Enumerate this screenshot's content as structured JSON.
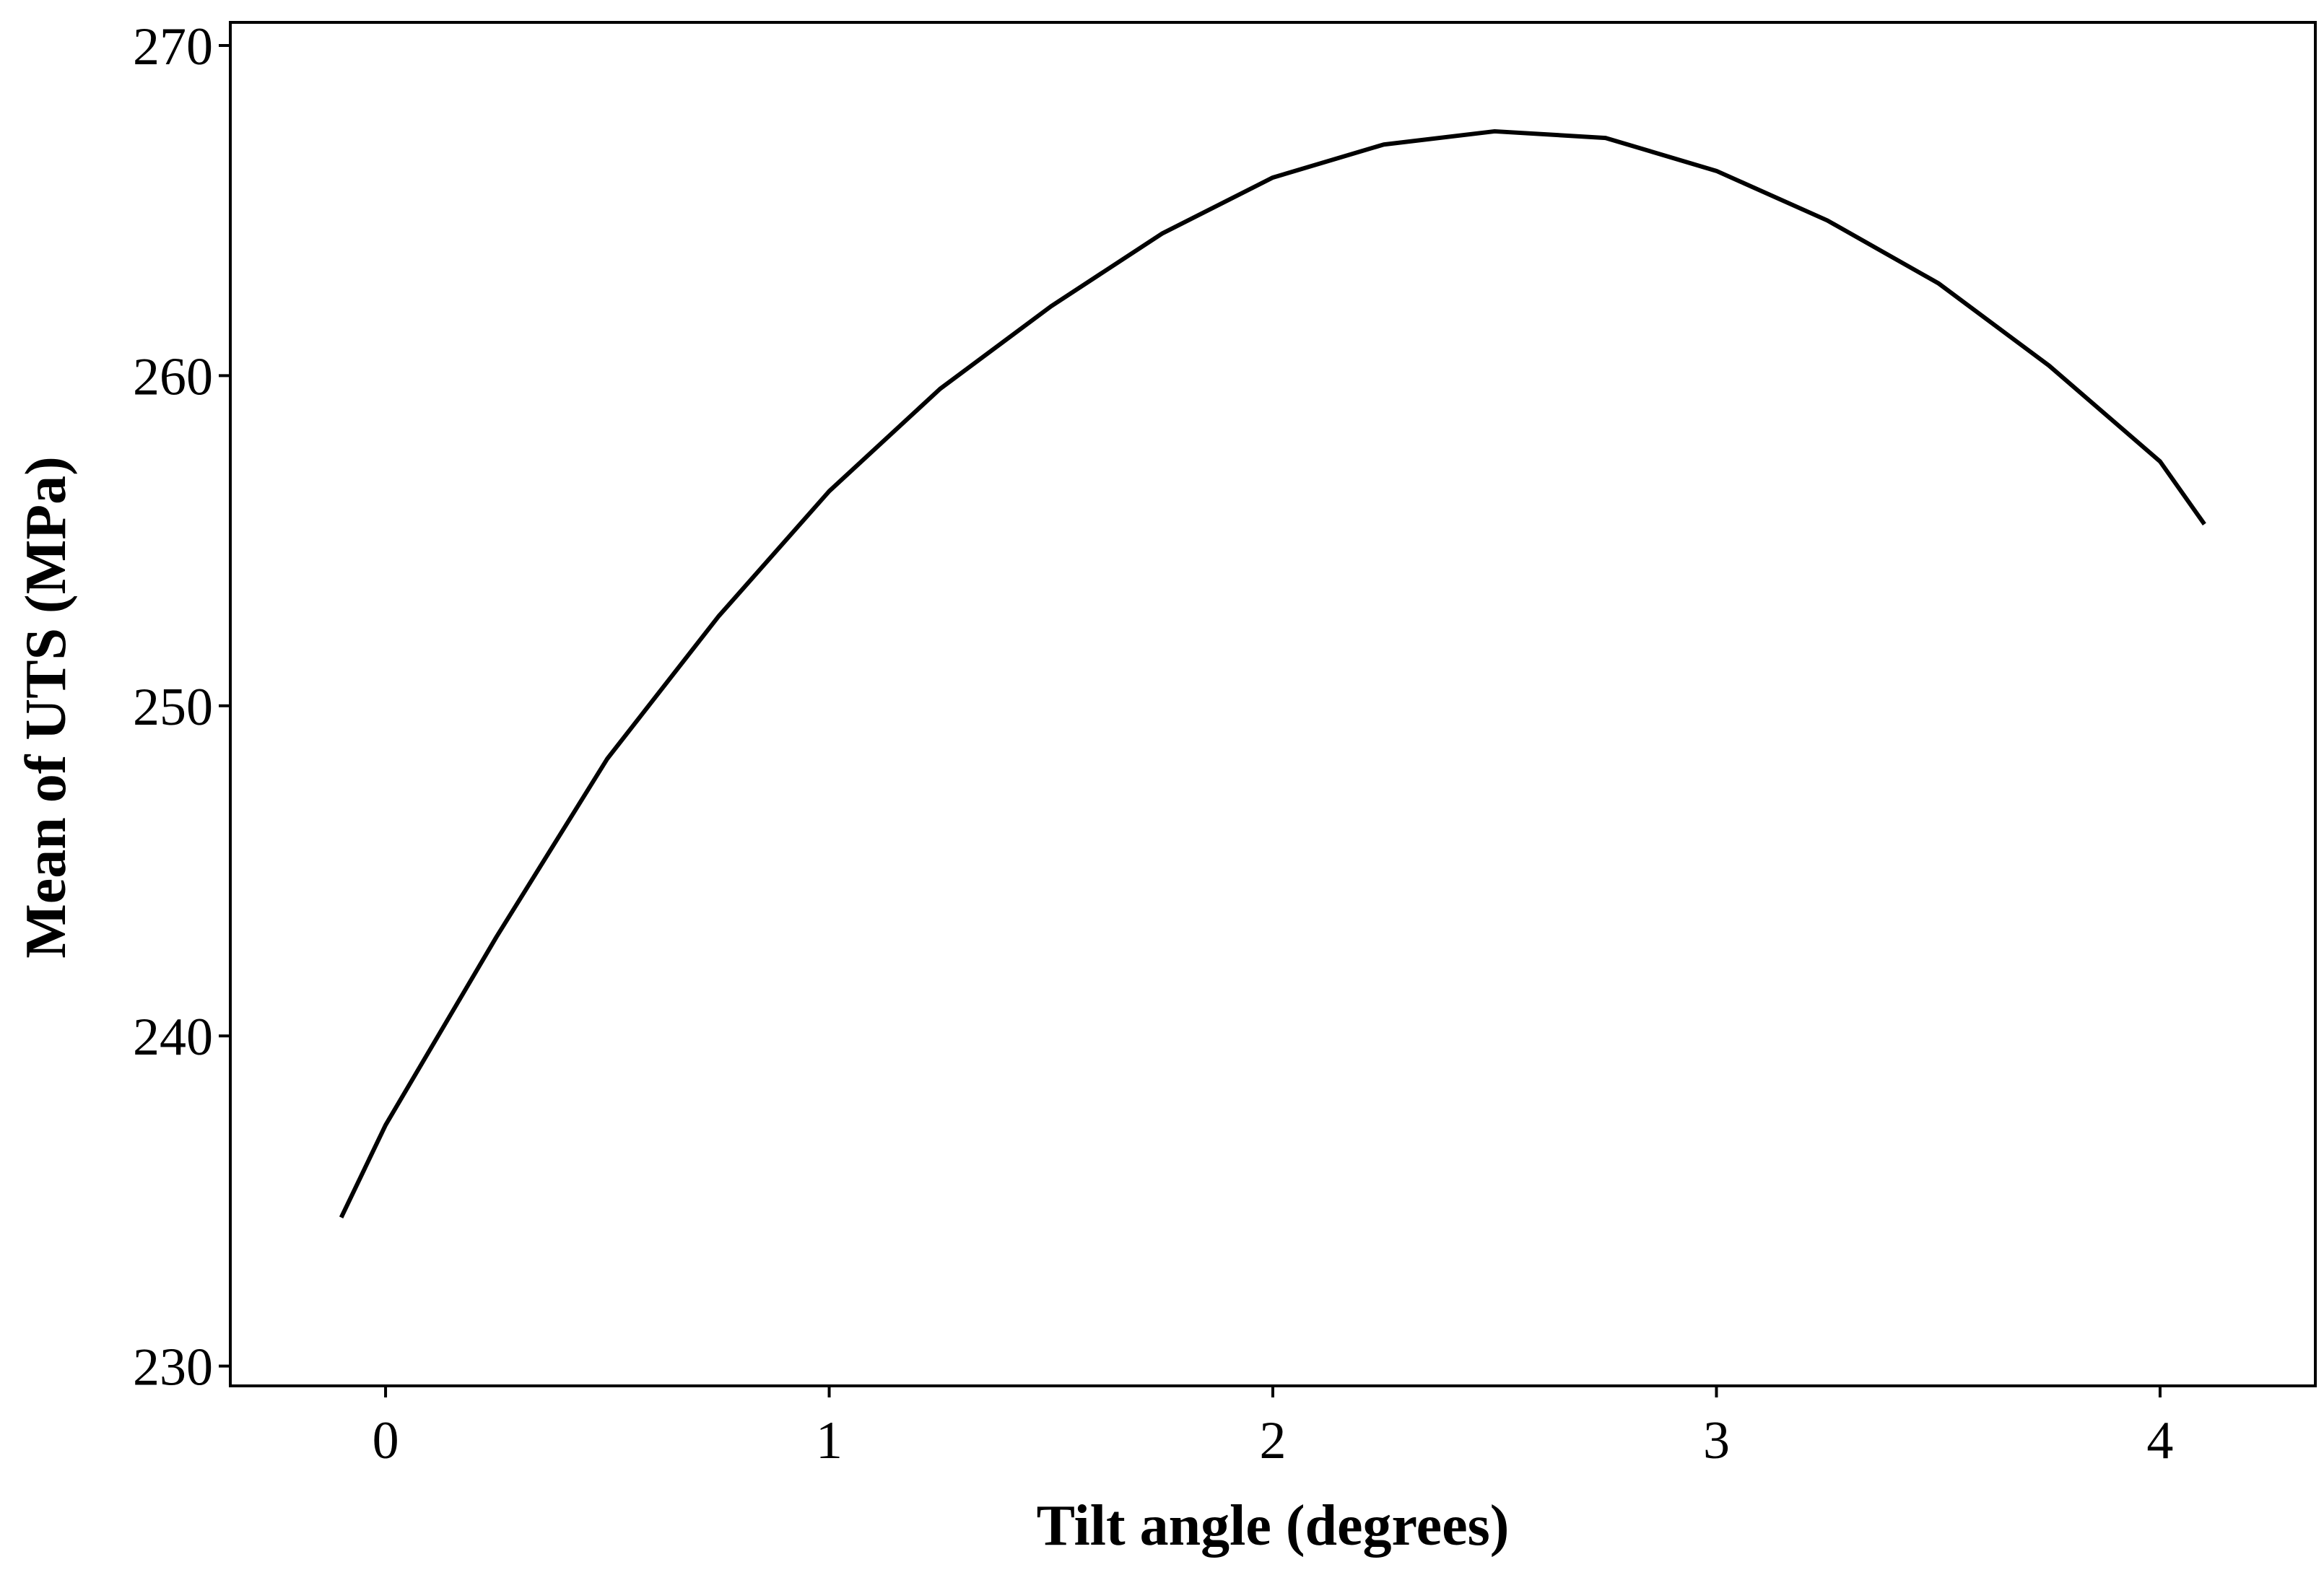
{
  "chart_data": {
    "type": "line",
    "xlabel": "Tilt angle (degrees)",
    "ylabel": "Mean of UTS (MPa)",
    "x": [
      -0.1,
      0,
      0.25,
      0.5,
      0.75,
      1,
      1.25,
      1.5,
      1.75,
      2,
      2.25,
      2.5,
      2.75,
      3,
      3.25,
      3.5,
      3.75,
      4,
      4.1
    ],
    "series": [
      {
        "color": "#000000",
        "values": [
          234.5,
          237.3,
          243.0,
          248.4,
          252.7,
          256.5,
          259.6,
          262.1,
          264.3,
          266.0,
          267.0,
          267.4,
          267.2,
          266.2,
          264.7,
          262.8,
          260.3,
          257.4,
          255.5
        ]
      }
    ],
    "xlim": [
      -0.35,
      4.35
    ],
    "xticks": [
      0,
      1,
      2,
      3,
      4
    ],
    "ylim": [
      229.4,
      270.7
    ],
    "yticks": [
      230,
      240,
      250,
      260,
      270
    ],
    "grid": false
  }
}
